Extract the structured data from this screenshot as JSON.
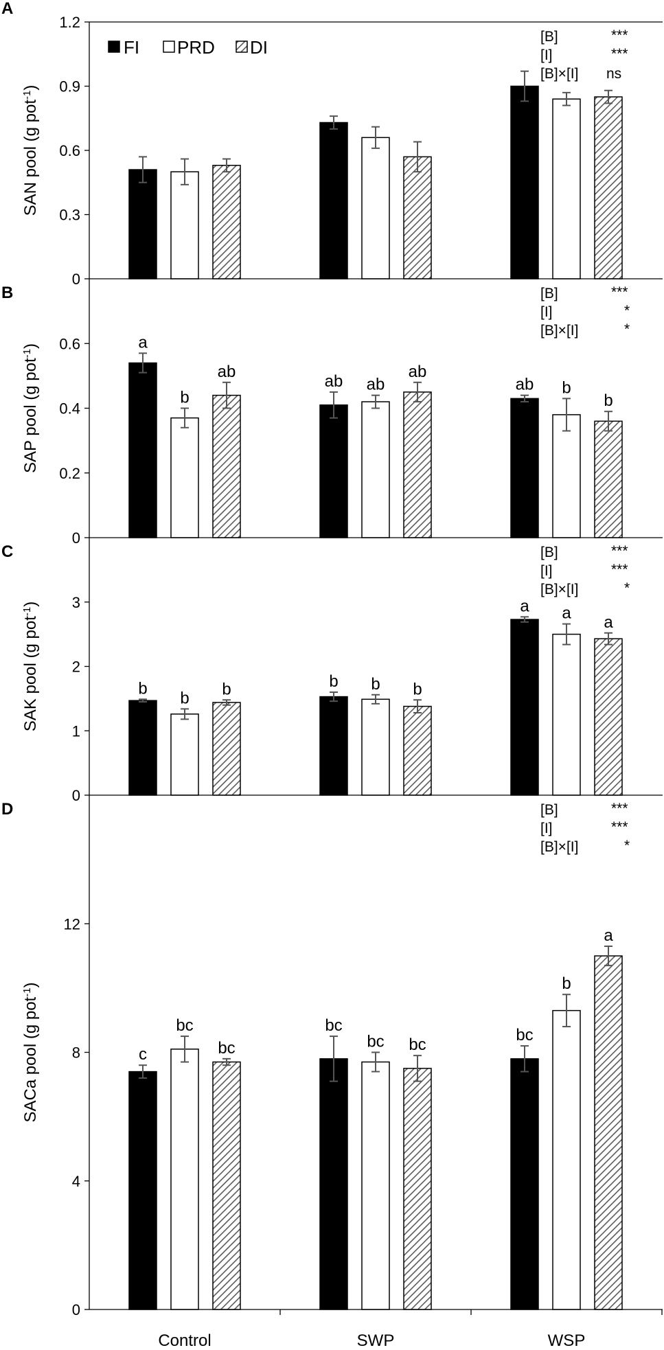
{
  "colors": {
    "FI": "#000000",
    "PRD": "#ffffff",
    "DI_hatch": "#5a5a5a",
    "error_bar": "#555555"
  },
  "legend": [
    "FI",
    "PRD",
    "DI"
  ],
  "categories": [
    "Control",
    "SWP",
    "WSP"
  ],
  "chart_data": [
    {
      "type": "bar",
      "panel": "A",
      "ylabel": "SAN pool (g pot-1)",
      "ylabel_main": "SAN pool (g pot",
      "ylabel_sup": "-1",
      "ylabel_close": ")",
      "ylim": [
        0,
        1.2
      ],
      "yticks": [
        "0",
        "0.3",
        "0.6",
        "0.9",
        "1.2"
      ],
      "ytick_values": [
        0,
        0.3,
        0.6,
        0.9,
        1.2
      ],
      "categories": [
        "Control",
        "SWP",
        "WSP"
      ],
      "series": [
        {
          "name": "FI",
          "values": [
            0.51,
            0.73,
            0.9
          ],
          "errors": [
            0.06,
            0.03,
            0.07
          ],
          "letters": [
            "",
            "",
            ""
          ]
        },
        {
          "name": "PRD",
          "values": [
            0.5,
            0.66,
            0.84
          ],
          "errors": [
            0.06,
            0.05,
            0.03
          ],
          "letters": [
            "",
            "",
            ""
          ]
        },
        {
          "name": "DI",
          "values": [
            0.53,
            0.57,
            0.85
          ],
          "errors": [
            0.03,
            0.07,
            0.03
          ],
          "letters": [
            "",
            "",
            ""
          ]
        }
      ],
      "stats": [
        {
          "label": "[B]",
          "sig": "***"
        },
        {
          "label": "[I]",
          "sig": "***"
        },
        {
          "label": "[B]×[I]",
          "sig": "ns"
        }
      ]
    },
    {
      "type": "bar",
      "panel": "B",
      "ylabel": "SAP pool (g pot-1)",
      "ylabel_main": "SAP pool (g pot",
      "ylabel_sup": "-1",
      "ylabel_close": ")",
      "ylim": [
        0,
        0.8
      ],
      "yticks": [
        "0",
        "0.2",
        "0.4",
        "0.6"
      ],
      "ytick_values": [
        0,
        0.2,
        0.4,
        0.6
      ],
      "categories": [
        "Control",
        "SWP",
        "WSP"
      ],
      "series": [
        {
          "name": "FI",
          "values": [
            0.54,
            0.41,
            0.43
          ],
          "errors": [
            0.03,
            0.04,
            0.01
          ],
          "letters": [
            "a",
            "ab",
            "ab"
          ]
        },
        {
          "name": "PRD",
          "values": [
            0.37,
            0.42,
            0.38
          ],
          "errors": [
            0.03,
            0.02,
            0.05
          ],
          "letters": [
            "b",
            "ab",
            "b"
          ]
        },
        {
          "name": "DI",
          "values": [
            0.44,
            0.45,
            0.36
          ],
          "errors": [
            0.04,
            0.03,
            0.03
          ],
          "letters": [
            "ab",
            "ab",
            "b"
          ]
        }
      ],
      "stats": [
        {
          "label": "[B]",
          "sig": "***"
        },
        {
          "label": "[I]",
          "sig": "*"
        },
        {
          "label": "[B]×[I]",
          "sig": "*"
        }
      ]
    },
    {
      "type": "bar",
      "panel": "C",
      "ylabel": "SAK pool (g pot-1)",
      "ylabel_main": "SAK pool (g pot",
      "ylabel_sup": "-1",
      "ylabel_close": ")",
      "ylim": [
        0,
        4
      ],
      "yticks": [
        "0",
        "1",
        "2",
        "3"
      ],
      "ytick_values": [
        0,
        1,
        2,
        3
      ],
      "categories": [
        "Control",
        "SWP",
        "WSP"
      ],
      "series": [
        {
          "name": "FI",
          "values": [
            1.47,
            1.53,
            2.73
          ],
          "errors": [
            0.02,
            0.07,
            0.04
          ],
          "letters": [
            "b",
            "b",
            "a"
          ]
        },
        {
          "name": "PRD",
          "values": [
            1.26,
            1.49,
            2.5
          ],
          "errors": [
            0.08,
            0.07,
            0.16
          ],
          "letters": [
            "b",
            "b",
            "a"
          ]
        },
        {
          "name": "DI",
          "values": [
            1.44,
            1.38,
            2.43
          ],
          "errors": [
            0.04,
            0.1,
            0.09
          ],
          "letters": [
            "b",
            "b",
            "a"
          ]
        }
      ],
      "stats": [
        {
          "label": "[B]",
          "sig": "***"
        },
        {
          "label": "[I]",
          "sig": "***"
        },
        {
          "label": "[B]×[I]",
          "sig": "*"
        }
      ]
    },
    {
      "type": "bar",
      "panel": "D",
      "ylabel": "SACa pool (g pot-1)",
      "ylabel_main": "SACa pool (g pot",
      "ylabel_sup": "-1",
      "ylabel_close": ")",
      "ylim": [
        0,
        16
      ],
      "yticks": [
        "0",
        "4",
        "8",
        "12"
      ],
      "ytick_values": [
        0,
        4,
        8,
        12
      ],
      "categories": [
        "Control",
        "SWP",
        "WSP"
      ],
      "series": [
        {
          "name": "FI",
          "values": [
            7.4,
            7.8,
            7.8
          ],
          "errors": [
            0.2,
            0.7,
            0.4
          ],
          "letters": [
            "c",
            "bc",
            "bc"
          ]
        },
        {
          "name": "PRD",
          "values": [
            8.1,
            7.7,
            9.3
          ],
          "errors": [
            0.4,
            0.3,
            0.5
          ],
          "letters": [
            "bc",
            "bc",
            "b"
          ]
        },
        {
          "name": "DI",
          "values": [
            7.7,
            7.5,
            11.0
          ],
          "errors": [
            0.1,
            0.4,
            0.3
          ],
          "letters": [
            "bc",
            "bc",
            "a"
          ]
        }
      ],
      "stats": [
        {
          "label": "[B]",
          "sig": "***"
        },
        {
          "label": "[I]",
          "sig": "***"
        },
        {
          "label": "[B]×[I]",
          "sig": "*"
        }
      ]
    }
  ]
}
